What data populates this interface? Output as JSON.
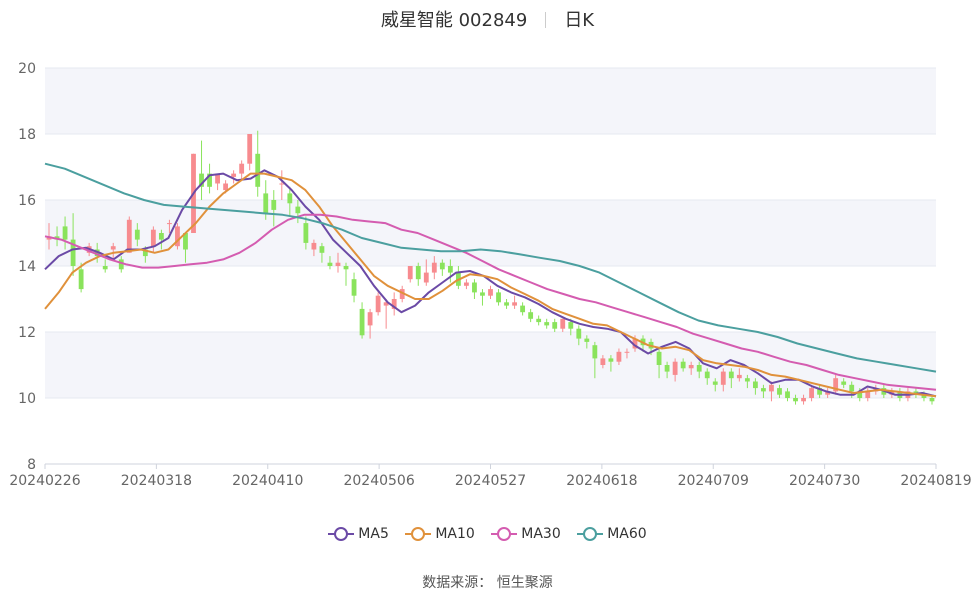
{
  "title": {
    "name": "威星智能 002849",
    "period": "日K"
  },
  "source": "数据来源： 恒生聚源",
  "colors": {
    "up": "#f78b8f",
    "down": "#8ae35c",
    "grid": "#e6e9f0",
    "band": "#f4f5fa"
  },
  "chart_data": {
    "type": "candlestick",
    "yaxis": {
      "min": 8,
      "max": 20,
      "ticks": [
        8,
        10,
        12,
        14,
        16,
        18,
        20
      ]
    },
    "xaxis": {
      "ticks": [
        "20240226",
        "20240318",
        "20240410",
        "20240506",
        "20240527",
        "20240618",
        "20240709",
        "20240730",
        "20240819"
      ]
    },
    "series": [
      {
        "name": "MA5",
        "color": "#6b4aa6",
        "values": [
          13.9,
          14.3,
          14.5,
          14.55,
          14.4,
          14.2,
          14.5,
          14.5,
          14.6,
          14.85,
          15.7,
          16.3,
          16.75,
          16.8,
          16.6,
          16.65,
          16.9,
          16.7,
          16.3,
          15.8,
          15.4,
          14.8,
          14.4,
          14.0,
          13.4,
          12.9,
          12.6,
          12.8,
          13.2,
          13.5,
          13.8,
          13.85,
          13.7,
          13.4,
          13.2,
          13.05,
          12.85,
          12.6,
          12.4,
          12.25,
          12.15,
          12.1,
          12.0,
          11.6,
          11.35,
          11.55,
          11.7,
          11.5,
          11.05,
          10.9,
          11.15,
          11.0,
          10.75,
          10.45,
          10.55,
          10.55,
          10.35,
          10.2,
          10.1,
          10.1,
          10.35,
          10.25,
          10.1,
          10.1,
          10.15,
          10.05
        ]
      },
      {
        "name": "MA10",
        "color": "#e0913b",
        "values": [
          12.7,
          13.2,
          13.8,
          14.1,
          14.3,
          14.4,
          14.45,
          14.5,
          14.4,
          14.5,
          14.9,
          15.3,
          15.8,
          16.2,
          16.5,
          16.8,
          16.8,
          16.7,
          16.6,
          16.3,
          15.8,
          15.2,
          14.7,
          14.2,
          13.7,
          13.4,
          13.2,
          13.0,
          13.0,
          13.25,
          13.55,
          13.75,
          13.7,
          13.6,
          13.35,
          13.15,
          12.95,
          12.7,
          12.55,
          12.4,
          12.25,
          12.2,
          12.0,
          11.8,
          11.6,
          11.5,
          11.55,
          11.45,
          11.15,
          11.05,
          11.0,
          10.95,
          10.85,
          10.7,
          10.65,
          10.55,
          10.45,
          10.35,
          10.25,
          10.15,
          10.2,
          10.25,
          10.2,
          10.15,
          10.1,
          10.05
        ]
      },
      {
        "name": "MA30",
        "color": "#d45cb0",
        "values": [
          14.9,
          14.8,
          14.6,
          14.4,
          14.2,
          14.05,
          13.95,
          13.95,
          14.0,
          14.05,
          14.1,
          14.2,
          14.4,
          14.7,
          15.1,
          15.4,
          15.55,
          15.55,
          15.5,
          15.4,
          15.35,
          15.3,
          15.1,
          15.0,
          14.8,
          14.6,
          14.4,
          14.15,
          13.9,
          13.7,
          13.5,
          13.3,
          13.15,
          13.0,
          12.9,
          12.75,
          12.6,
          12.45,
          12.3,
          12.15,
          11.95,
          11.8,
          11.65,
          11.5,
          11.4,
          11.25,
          11.1,
          11.0,
          10.85,
          10.7,
          10.6,
          10.5,
          10.4,
          10.35,
          10.3,
          10.25
        ]
      },
      {
        "name": "MA60",
        "color": "#4b9f9f",
        "values": [
          17.1,
          16.95,
          16.7,
          16.45,
          16.2,
          16.0,
          15.85,
          15.8,
          15.75,
          15.7,
          15.65,
          15.6,
          15.55,
          15.45,
          15.3,
          15.1,
          14.85,
          14.7,
          14.55,
          14.5,
          14.45,
          14.45,
          14.5,
          14.45,
          14.35,
          14.25,
          14.15,
          14.0,
          13.8,
          13.5,
          13.2,
          12.9,
          12.6,
          12.35,
          12.2,
          12.1,
          12.0,
          11.85,
          11.65,
          11.5,
          11.35,
          11.2,
          11.1,
          11.0,
          10.9,
          10.8
        ]
      }
    ],
    "candles": [
      [
        14.8,
        14.9,
        14.5,
        15.3
      ],
      [
        14.9,
        14.8,
        14.6,
        15.2
      ],
      [
        15.2,
        14.8,
        14.5,
        15.5
      ],
      [
        14.8,
        14.0,
        13.7,
        15.6
      ],
      [
        13.9,
        13.3,
        13.2,
        14.1
      ],
      [
        14.4,
        14.6,
        14.3,
        14.7
      ],
      [
        14.5,
        14.3,
        14.1,
        14.7
      ],
      [
        14.0,
        13.9,
        13.8,
        14.2
      ],
      [
        14.5,
        14.6,
        14.2,
        14.7
      ],
      [
        14.2,
        13.9,
        13.8,
        14.3
      ],
      [
        14.4,
        15.4,
        14.4,
        15.5
      ],
      [
        15.1,
        14.8,
        14.6,
        15.3
      ],
      [
        14.5,
        14.3,
        14.1,
        14.6
      ],
      [
        14.6,
        15.1,
        14.4,
        15.2
      ],
      [
        15.0,
        14.8,
        14.5,
        15.1
      ],
      [
        15.3,
        15.3,
        15.0,
        15.4
      ],
      [
        14.6,
        15.2,
        14.5,
        15.3
      ],
      [
        15.0,
        14.5,
        14.1,
        15.0
      ],
      [
        15.0,
        17.4,
        15.0,
        17.4
      ],
      [
        16.8,
        16.4,
        16.0,
        17.8
      ],
      [
        16.8,
        16.4,
        16.2,
        17.1
      ],
      [
        16.5,
        16.8,
        16.3,
        16.8
      ],
      [
        16.3,
        16.5,
        16.2,
        16.6
      ],
      [
        16.7,
        16.8,
        16.5,
        16.9
      ],
      [
        16.8,
        17.1,
        16.6,
        17.2
      ],
      [
        17.1,
        18.0,
        16.9,
        18.0
      ],
      [
        17.4,
        16.4,
        16.1,
        18.1
      ],
      [
        16.2,
        15.6,
        15.4,
        16.6
      ],
      [
        16.0,
        15.7,
        15.2,
        16.3
      ],
      [
        16.5,
        16.5,
        16.0,
        16.9
      ],
      [
        16.2,
        15.9,
        15.5,
        16.4
      ],
      [
        15.8,
        15.6,
        15.3,
        16.0
      ],
      [
        15.3,
        14.7,
        14.5,
        15.5
      ],
      [
        14.5,
        14.7,
        14.3,
        14.8
      ],
      [
        14.6,
        14.4,
        14.1,
        14.7
      ],
      [
        14.1,
        14.0,
        13.9,
        14.3
      ],
      [
        14.0,
        14.1,
        13.8,
        14.4
      ],
      [
        14.0,
        13.9,
        13.4,
        14.1
      ],
      [
        13.6,
        13.1,
        12.9,
        13.8
      ],
      [
        12.7,
        11.9,
        11.8,
        12.9
      ],
      [
        12.2,
        12.6,
        11.8,
        12.7
      ],
      [
        12.6,
        13.1,
        12.5,
        13.2
      ],
      [
        12.8,
        12.9,
        12.1,
        13.0
      ],
      [
        12.7,
        13.0,
        12.5,
        13.2
      ],
      [
        13.0,
        13.3,
        12.9,
        13.4
      ],
      [
        13.6,
        14.0,
        13.5,
        14.0
      ],
      [
        14.0,
        13.6,
        13.4,
        14.1
      ],
      [
        13.5,
        13.8,
        13.4,
        14.2
      ],
      [
        13.8,
        14.1,
        13.6,
        14.3
      ],
      [
        14.1,
        13.9,
        13.7,
        14.2
      ],
      [
        14.0,
        13.8,
        13.5,
        14.2
      ],
      [
        13.8,
        13.4,
        13.3,
        14.0
      ],
      [
        13.4,
        13.5,
        13.3,
        13.6
      ],
      [
        13.5,
        13.2,
        13.0,
        13.6
      ],
      [
        13.2,
        13.1,
        12.8,
        13.3
      ],
      [
        13.1,
        13.3,
        13.0,
        13.4
      ],
      [
        13.2,
        12.9,
        12.8,
        13.3
      ],
      [
        12.9,
        12.8,
        12.7,
        13.0
      ],
      [
        12.8,
        12.9,
        12.7,
        13.1
      ],
      [
        12.8,
        12.6,
        12.5,
        12.9
      ],
      [
        12.6,
        12.4,
        12.3,
        12.7
      ],
      [
        12.4,
        12.3,
        12.2,
        12.5
      ],
      [
        12.3,
        12.2,
        12.1,
        12.4
      ],
      [
        12.3,
        12.1,
        12.0,
        12.4
      ],
      [
        12.1,
        12.4,
        12.0,
        12.4
      ],
      [
        12.3,
        12.1,
        11.9,
        12.4
      ],
      [
        12.1,
        11.8,
        11.6,
        12.2
      ],
      [
        11.8,
        11.7,
        11.5,
        11.9
      ],
      [
        11.6,
        11.2,
        10.6,
        11.7
      ],
      [
        11.0,
        11.2,
        10.9,
        11.3
      ],
      [
        11.2,
        11.1,
        10.8,
        11.3
      ],
      [
        11.1,
        11.4,
        11.0,
        11.5
      ],
      [
        11.4,
        11.4,
        11.2,
        11.5
      ],
      [
        11.5,
        11.8,
        11.4,
        11.9
      ],
      [
        11.8,
        11.6,
        11.4,
        11.9
      ],
      [
        11.7,
        11.5,
        11.3,
        11.8
      ],
      [
        11.4,
        11.0,
        10.6,
        11.5
      ],
      [
        11.0,
        10.8,
        10.6,
        11.1
      ],
      [
        10.7,
        11.1,
        10.5,
        11.2
      ],
      [
        11.1,
        10.9,
        10.8,
        11.2
      ],
      [
        10.9,
        11.0,
        10.7,
        11.1
      ],
      [
        11.0,
        10.8,
        10.6,
        11.1
      ],
      [
        10.8,
        10.6,
        10.4,
        10.9
      ],
      [
        10.5,
        10.4,
        10.2,
        10.6
      ],
      [
        10.4,
        10.8,
        10.2,
        10.9
      ],
      [
        10.8,
        10.6,
        10.3,
        10.9
      ],
      [
        10.6,
        10.7,
        10.5,
        10.9
      ],
      [
        10.6,
        10.5,
        10.3,
        10.7
      ],
      [
        10.5,
        10.3,
        10.1,
        10.6
      ],
      [
        10.3,
        10.2,
        10.0,
        10.4
      ],
      [
        10.2,
        10.4,
        9.9,
        10.5
      ],
      [
        10.3,
        10.1,
        10.0,
        10.4
      ],
      [
        10.2,
        10.0,
        9.9,
        10.3
      ],
      [
        10.0,
        9.9,
        9.8,
        10.1
      ],
      [
        9.9,
        10.0,
        9.8,
        10.1
      ],
      [
        10.0,
        10.3,
        9.9,
        10.4
      ],
      [
        10.3,
        10.1,
        10.0,
        10.4
      ],
      [
        10.1,
        10.2,
        10.0,
        10.3
      ],
      [
        10.2,
        10.6,
        10.1,
        10.7
      ],
      [
        10.5,
        10.4,
        10.3,
        10.6
      ],
      [
        10.4,
        10.2,
        10.0,
        10.5
      ],
      [
        10.2,
        10.0,
        9.9,
        10.3
      ],
      [
        10.0,
        10.2,
        9.9,
        10.3
      ],
      [
        10.2,
        10.3,
        10.1,
        10.4
      ],
      [
        10.3,
        10.1,
        10.0,
        10.4
      ],
      [
        10.1,
        10.2,
        10.0,
        10.3
      ],
      [
        10.2,
        10.0,
        9.9,
        10.3
      ],
      [
        10.0,
        10.2,
        9.9,
        10.3
      ],
      [
        10.2,
        10.1,
        10.0,
        10.3
      ],
      [
        10.1,
        10.0,
        9.9,
        10.2
      ],
      [
        10.0,
        9.9,
        9.8,
        10.1
      ]
    ]
  }
}
